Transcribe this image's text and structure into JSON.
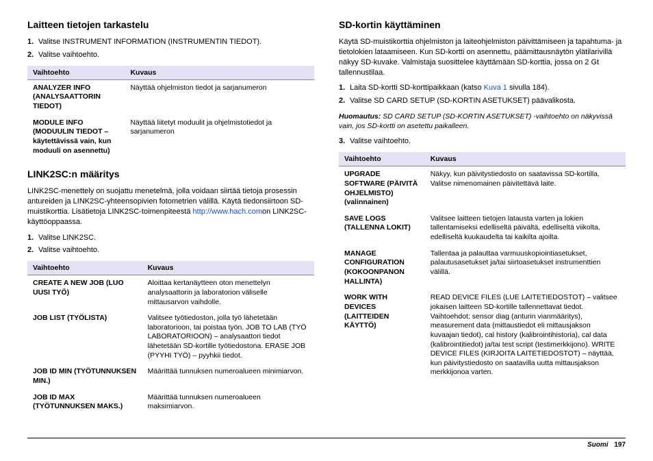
{
  "left": {
    "section1": {
      "title": "Laitteen tietojen tarkastelu",
      "step1": "Valitse INSTRUMENT INFORMATION (INSTRUMENTIN TIEDOT).",
      "step2": "Valitse vaihtoehto.",
      "table": {
        "h1": "Vaihtoehto",
        "h2": "Kuvaus",
        "r1c1": "ANALYZER INFO (ANALYSAATTORIN TIEDOT)",
        "r1c2": "Näyttää ohjelmiston tiedot ja sarjanumeron",
        "r2c1": "MODULE INFO (MODUULIN TIEDOT – käytettävissä vain, kun moduuli on asennettu)",
        "r2c2": "Näyttää liitetyt moduulit ja ohjelmistotiedot ja sarjanumeron"
      }
    },
    "section2": {
      "title": "LINK2SC:n määritys",
      "para_a": "LINK2SC-menettely on suojattu menetelmä, jolla voidaan siirtää tietoja prosessin antureiden ja LINK2SC-yhteensopivien fotometrien välillä. Käytä tiedonsiirtoon SD-muistikorttia. Lisätietoja LINK2SC-toimenpiteestä ",
      "link_text": "http://www.hach.com",
      "para_b": "on LINK2SC-käyttöoppaassa.",
      "step1": "Valitse LINK2SC.",
      "step2": "Valitse vaihtoehto.",
      "table": {
        "h1": "Vaihtoehto",
        "h2": "Kuvaus",
        "r1c1": "CREATE A NEW JOB (LUO UUSI TYÖ)",
        "r1c2": "Aloittaa kertanäytteen oton menettelyn analysaattorin ja laboratorion väliselle mittausarvon vaihdolle.",
        "r2c1": "JOB LIST (TYÖLISTA)",
        "r2c2": "Valitsee työtiedoston, jolla työ lähetetään laboratorioon, tai poistaa työn. JOB TO LAB (TYÖ LABORATORIOON) – analysaattori tiedot lähetetään SD-kortille työtiedostona. ERASE JOB (PYYHI TYÖ) – pyyhkii tiedot.",
        "r3c1": "JOB ID MIN (TYÖTUNNUKSEN MIN.)",
        "r3c2": "Määrittää tunnuksen numeroalueen minimiarvon.",
        "r4c1": "JOB ID MAX (TYÖTUNNUKSEN MAKS.)",
        "r4c2": "Määrittää tunnuksen numeroalueen maksimiarvon."
      }
    }
  },
  "right": {
    "section1": {
      "title": "SD-kortin käyttäminen",
      "para": "Käytä SD-muistikorttia ohjelmiston ja laiteohjelmiston päivittämiseen ja tapahtuma- ja tietolokien lataamiseen. Kun SD-kortti on asennettu, päämittausnäytön ylätilarivillä näkyy SD-kuvake. Valmistaja suosittelee käyttämään SD-korttia, jossa on 2 Gt tallennustilaa.",
      "step1_a": "Laita SD-kortti SD-korttipaikkaan (katso ",
      "step1_link": "Kuva 1",
      "step1_b": " sivulla 184).",
      "step2": "Valitse SD CARD SETUP (SD-KORTIN ASETUKSET) päävalikosta.",
      "note_label": "Huomautus:",
      "note_text": " SD CARD SETUP (SD-KORTIN ASETUKSET) -vaihtoehto on näkyvissä vain, jos SD-kortti on asetettu paikalleen.",
      "step3": "Valitse vaihtoehto.",
      "table": {
        "h1": "Vaihtoehto",
        "h2": "Kuvaus",
        "r1c1": "UPGRADE SOFTWARE (PÄIVITÄ OHJELMISTO) (valinnainen)",
        "r1c2": "Näkyy, kun päivitystiedosto on saatavissa SD-kortilla. Valitse nimenomainen päivitettävä laite.",
        "r2c1": "SAVE LOGS (TALLENNA LOKIT)",
        "r2c2": "Valitsee laitteen tietojen latausta varten ja lokien tallentamiseksi edelliseltä päivältä, edelliseltä viikolta, edelliseltä kuukaudelta tai kaikilta ajoilta.",
        "r3c1": "MANAGE CONFIGURATION (KOKOONPANON HALLINTA)",
        "r3c2": "Tallentaa ja palauttaa varmuuskopiointiasetukset, palautusasetukset ja/tai siirtoasetukset instrumenttien välillä.",
        "r4c1": "WORK WITH DEVICES (LAITTEIDEN KÄYTTÖ)",
        "r4c2": "READ DEVICE FILES (LUE LAITETIEDOSTOT) – valitsee jokaisen laitteen SD-kortille tallennettavat tiedot. Vaihtoehdot: sensor diag (anturin vianmääritys), measurement data (mittaustiedot eli mittausjakson kuvaajan tiedot), cal history (kalibrointihistoria), cal data (kalibrointitiedot) ja/tai test script (testimerkkijono). WRITE DEVICE FILES (KIRJOITA LAITETIEDOSTOT) – näyttää, kun päivitystiedosto on saatavilla uutta mittausjakson merkkijonoa varten."
      }
    }
  },
  "footer": {
    "lang": "Suomi",
    "page": "197"
  }
}
